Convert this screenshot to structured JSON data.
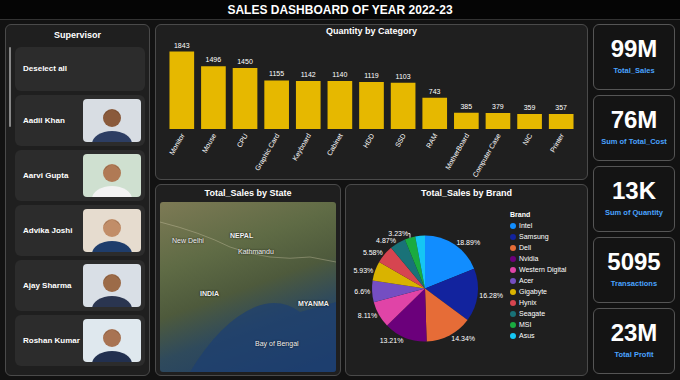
{
  "title": "SALES DASHBOARD OF YEAR 2022-23",
  "supervisor": {
    "title": "Supervisor",
    "deselect": "Deselect all",
    "names": [
      "Aadil Khan",
      "Aarvi Gupta",
      "Advika Joshi",
      "Ajay Sharma",
      "Roshan Kumar"
    ]
  },
  "kpis": [
    {
      "value": "99M",
      "label": "Total_Sales"
    },
    {
      "value": "76M",
      "label": "Sum of Total_Cost"
    },
    {
      "value": "13K",
      "label": "Sum of Quantity"
    },
    {
      "value": "5095",
      "label": "Transactions"
    },
    {
      "value": "23M",
      "label": "Total Profit"
    }
  ],
  "map": {
    "title": "Total_Sales by State",
    "labels": [
      "New Delhi",
      "Kathmandu",
      "NEPAL",
      "INDIA",
      "MYANMA",
      "Bay of Bengal"
    ]
  },
  "chart_data": [
    {
      "type": "bar",
      "title": "Quantity by Category",
      "categories": [
        "Monitor",
        "Mouse",
        "CPU",
        "Graphic Card",
        "Keyboard",
        "Cabinet",
        "HDD",
        "SSD",
        "RAM",
        "MotherBoard",
        "Computer Case",
        "NIC",
        "Printer"
      ],
      "values": [
        1843,
        1496,
        1450,
        1155,
        1142,
        1140,
        1119,
        1103,
        743,
        385,
        379,
        359,
        357
      ],
      "color": "#e6b800",
      "ylim": [
        0,
        2000
      ],
      "data_labels": true,
      "tick_labels": "x",
      "grid": false
    },
    {
      "type": "pie",
      "title": "Total_Sales by Brand",
      "legend_title": "Brand",
      "categories": [
        "Intel",
        "Samsung",
        "Dell",
        "Nvidia",
        "Western Digital",
        "Acer",
        "Gigabyte",
        "Hynix",
        "Seagate",
        "MSI",
        "Asus"
      ],
      "values": [
        18.89,
        16.28,
        14.34,
        13.21,
        8.11,
        6.6,
        5.93,
        5.58,
        4.87,
        3.23,
        2.96
      ],
      "value_labels": [
        "18.89%",
        "16.28%",
        "14.34%",
        "13.21%",
        "8.11%",
        "6.6%",
        "5.93%",
        "5.58%",
        "4.87%",
        "3.23%",
        null
      ],
      "colors": [
        "#118dff",
        "#12239e",
        "#e66c37",
        "#6b007b",
        "#e044a7",
        "#744ec2",
        "#d9b300",
        "#d64550",
        "#197278",
        "#1aab40",
        "#15c6f4"
      ],
      "legend": "right",
      "data_labels": true
    }
  ]
}
